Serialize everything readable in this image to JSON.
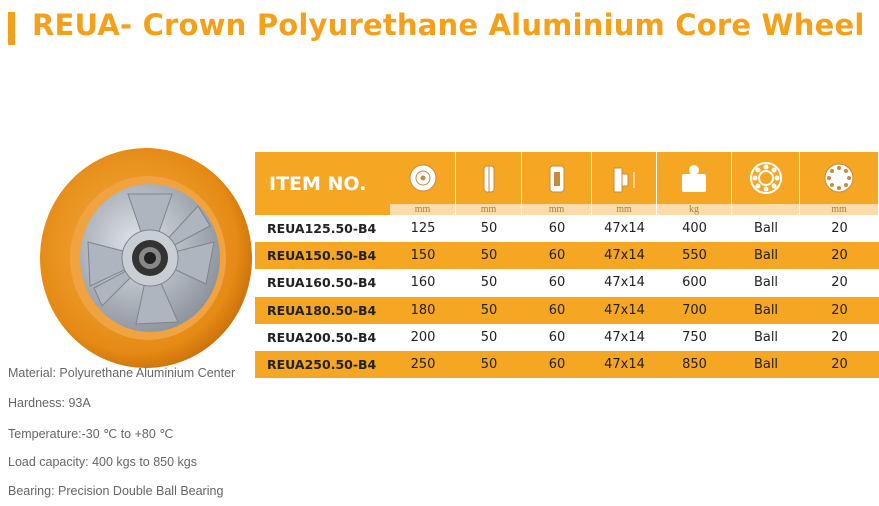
{
  "title": "REUA- Crown Polyurethane Aluminium Core Wheel",
  "table": {
    "header": "ITEM NO.",
    "units": [
      "mm",
      "mm",
      "mm",
      "mm",
      "kg",
      null,
      "mm"
    ],
    "rows": [
      [
        "REUA125.50-B4",
        "125",
        "50",
        "60",
        "47x14",
        "400",
        "Ball",
        "20"
      ],
      [
        "REUA150.50-B4",
        "150",
        "50",
        "60",
        "47x14",
        "550",
        "Ball",
        "20"
      ],
      [
        "REUA160.50-B4",
        "160",
        "50",
        "60",
        "47x14",
        "600",
        "Ball",
        "20"
      ],
      [
        "REUA180.50-B4",
        "180",
        "50",
        "60",
        "47x14",
        "700",
        "Ball",
        "20"
      ],
      [
        "REUA200.50-B4",
        "200",
        "50",
        "60",
        "47x14",
        "750",
        "Ball",
        "20"
      ],
      [
        "REUA250.50-B4",
        "250",
        "50",
        "60",
        "47x14",
        "850",
        "Ball",
        "20"
      ]
    ]
  },
  "specs": [
    "Material: Polyurethane Aluminium Center",
    "Hardness: 93A",
    "Temperature:-30 ℃ to +80 ℃",
    "Load capacity: 400 kgs to 850 kgs",
    "Bearing: Precision Double Ball Bearing"
  ]
}
